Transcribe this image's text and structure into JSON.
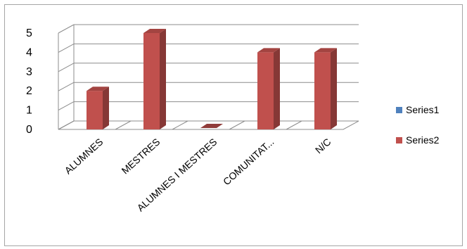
{
  "chart_data": {
    "type": "bar",
    "categories": [
      "ALUMNES",
      "MESTRES",
      "ALUMNES I MESTRES",
      "COMUNITAT...",
      "N/C"
    ],
    "series": [
      {
        "name": "Series1",
        "values": [
          0,
          0,
          0,
          0,
          0
        ],
        "color": "#4f81bd"
      },
      {
        "name": "Series2",
        "values": [
          2,
          5,
          0,
          4,
          4
        ],
        "color": "#c0504d"
      }
    ],
    "y_ticks": [
      "0",
      "1",
      "2",
      "3",
      "4",
      "5"
    ],
    "ylim": [
      0,
      5
    ],
    "grid": true,
    "style": "3d-column",
    "legend_position": "right"
  }
}
